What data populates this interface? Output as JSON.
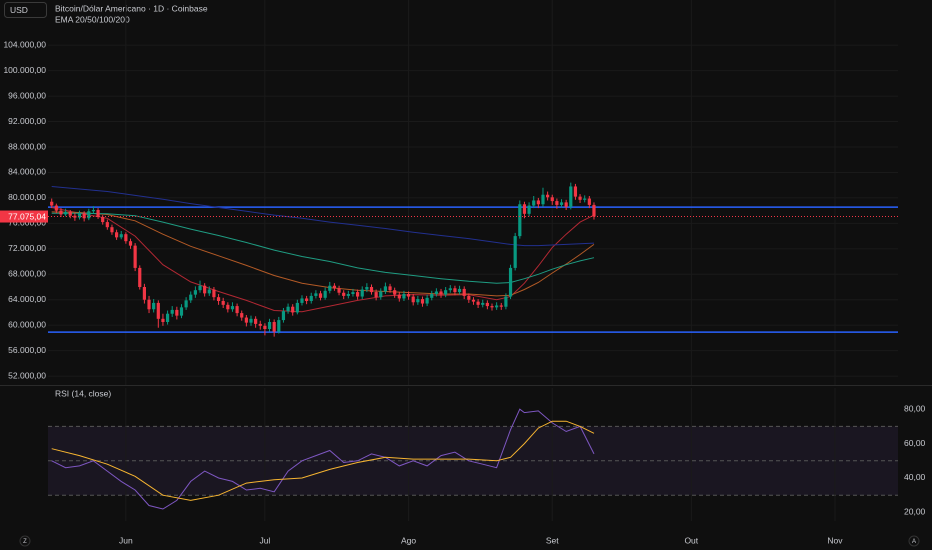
{
  "controls": [
    "Z",
    "A"
  ],
  "chart_data": [
    {
      "type": "candlestick",
      "currency": "USD",
      "title": "Bitcoin/Dólar Americano · 1D · Coinbase",
      "subtitle": "EMA 20/50/100/200",
      "xlim": [
        -0.8,
        182.6
      ],
      "ylim": [
        50600,
        111100
      ],
      "yticks": [
        {
          "value": 104000,
          "label": "104.000,00"
        },
        {
          "value": 100000,
          "label": "100.000,00"
        },
        {
          "value": 96000,
          "label": "96.000,00"
        },
        {
          "value": 92000,
          "label": "92.000,00"
        },
        {
          "value": 88000,
          "label": "88.000,00"
        },
        {
          "value": 84000,
          "label": "84.000,00"
        },
        {
          "value": 80000,
          "label": "80.000,00"
        },
        {
          "value": 76000,
          "label": "76.000,00"
        },
        {
          "value": 72000,
          "label": "72.000,00"
        },
        {
          "value": 68000,
          "label": "68.000,00"
        },
        {
          "value": 64000,
          "label": "64.000,00"
        },
        {
          "value": 60000,
          "label": "60.000,00"
        },
        {
          "value": 56000,
          "label": "56.000,00"
        },
        {
          "value": 52000,
          "label": "52.000,00"
        }
      ],
      "grid": true,
      "up_color": "#089981",
      "down_color": "#f23645",
      "levels": [
        78550,
        58900
      ],
      "level_color": "#2962ff",
      "last_price": {
        "value": 77075.04,
        "label": "77.075,04",
        "color": "#f23645"
      },
      "ohlc": [
        [
          79400,
          79900,
          78400,
          78800
        ],
        [
          78800,
          79100,
          77600,
          78000
        ],
        [
          78000,
          78400,
          77000,
          77400
        ],
        [
          77400,
          78300,
          77100,
          77800
        ],
        [
          77800,
          78100,
          76800,
          77200
        ],
        [
          77200,
          77600,
          76400,
          76900
        ],
        [
          76900,
          78000,
          76600,
          77600
        ],
        [
          77600,
          77900,
          76300,
          76800
        ],
        [
          76800,
          78300,
          76500,
          77900
        ],
        [
          77900,
          78700,
          77500,
          78100
        ],
        [
          78100,
          78400,
          76700,
          77000
        ],
        [
          77000,
          77300,
          75800,
          76200
        ],
        [
          76200,
          76600,
          75000,
          75400
        ],
        [
          75400,
          75800,
          74200,
          74600
        ],
        [
          74600,
          75000,
          73400,
          73800
        ],
        [
          73800,
          74800,
          73500,
          74300
        ],
        [
          74300,
          74600,
          72800,
          73200
        ],
        [
          73200,
          73600,
          72000,
          72500
        ],
        [
          72500,
          72900,
          68500,
          69000
        ],
        [
          69000,
          69400,
          65600,
          66000
        ],
        [
          66000,
          66500,
          63400,
          64000
        ],
        [
          64000,
          64600,
          61900,
          62500
        ],
        [
          62500,
          64100,
          62000,
          63500
        ],
        [
          63500,
          63900,
          59600,
          61000
        ],
        [
          61000,
          61800,
          59900,
          60500
        ],
        [
          60500,
          62300,
          60100,
          61800
        ],
        [
          61800,
          63000,
          61300,
          62400
        ],
        [
          62400,
          62900,
          60900,
          61500
        ],
        [
          61500,
          63300,
          61100,
          62800
        ],
        [
          62800,
          64400,
          62400,
          63900
        ],
        [
          63900,
          65300,
          63500,
          64800
        ],
        [
          64800,
          66100,
          64300,
          65500
        ],
        [
          65500,
          67000,
          65100,
          66200
        ],
        [
          66200,
          66600,
          64500,
          65000
        ],
        [
          65000,
          66100,
          64600,
          65600
        ],
        [
          65600,
          66000,
          63900,
          64400
        ],
        [
          64400,
          64900,
          63200,
          63800
        ],
        [
          63800,
          64300,
          62700,
          63200
        ],
        [
          63200,
          63600,
          62000,
          62500
        ],
        [
          62500,
          63600,
          62100,
          63000
        ],
        [
          63000,
          63400,
          61400,
          61900
        ],
        [
          61900,
          62300,
          60700,
          61200
        ],
        [
          61200,
          61600,
          59800,
          60400
        ],
        [
          60400,
          61500,
          59900,
          61000
        ],
        [
          61000,
          61400,
          59600,
          60200
        ],
        [
          60200,
          60700,
          59300,
          59900
        ],
        [
          59900,
          60300,
          58400,
          59400
        ],
        [
          59400,
          61000,
          59000,
          60500
        ],
        [
          60500,
          60900,
          58200,
          59000
        ],
        [
          59000,
          61300,
          58700,
          60800
        ],
        [
          60800,
          62700,
          60400,
          62200
        ],
        [
          62200,
          63400,
          61800,
          62900
        ],
        [
          62900,
          63300,
          61500,
          62000
        ],
        [
          62000,
          64000,
          61700,
          63500
        ],
        [
          63500,
          64700,
          63100,
          64200
        ],
        [
          64200,
          64600,
          63300,
          63800
        ],
        [
          63800,
          65100,
          63400,
          64600
        ],
        [
          64600,
          65500,
          64200,
          65000
        ],
        [
          65000,
          65400,
          63900,
          64300
        ],
        [
          64300,
          65900,
          64000,
          65400
        ],
        [
          65400,
          66800,
          65000,
          66200
        ],
        [
          66200,
          66600,
          65400,
          65800
        ],
        [
          65800,
          66200,
          64700,
          65100
        ],
        [
          65100,
          65500,
          64100,
          64600
        ],
        [
          64600,
          65400,
          64200,
          64900
        ],
        [
          64900,
          65700,
          64500,
          65200
        ],
        [
          65200,
          65600,
          64000,
          64500
        ],
        [
          64500,
          66100,
          64100,
          65600
        ],
        [
          65600,
          66600,
          65200,
          66000
        ],
        [
          66000,
          66400,
          64800,
          65200
        ],
        [
          65200,
          65600,
          63900,
          64400
        ],
        [
          64400,
          65800,
          64000,
          65300
        ],
        [
          65300,
          66700,
          64900,
          66100
        ],
        [
          66100,
          66500,
          65100,
          65500
        ],
        [
          65500,
          65900,
          64300,
          64800
        ],
        [
          64800,
          65200,
          63700,
          64200
        ],
        [
          64200,
          65400,
          63800,
          64900
        ],
        [
          64900,
          65300,
          64000,
          64500
        ],
        [
          64500,
          64900,
          63100,
          63600
        ],
        [
          63600,
          64600,
          63200,
          64100
        ],
        [
          64100,
          64500,
          62900,
          63400
        ],
        [
          63400,
          64800,
          63000,
          64300
        ],
        [
          64300,
          65400,
          63900,
          64900
        ],
        [
          64900,
          65800,
          64500,
          65300
        ],
        [
          65300,
          65700,
          64300,
          64800
        ],
        [
          64800,
          66000,
          64400,
          65500
        ],
        [
          65500,
          66300,
          65100,
          65800
        ],
        [
          65800,
          66200,
          64700,
          65200
        ],
        [
          65200,
          66200,
          64800,
          65700
        ],
        [
          65700,
          66100,
          64100,
          64600
        ],
        [
          64600,
          65000,
          63500,
          64000
        ],
        [
          64000,
          64400,
          63200,
          63700
        ],
        [
          63700,
          64100,
          62700,
          63200
        ],
        [
          63200,
          64000,
          62800,
          63500
        ],
        [
          63500,
          63900,
          62500,
          63000
        ],
        [
          63000,
          63400,
          62300,
          62800
        ],
        [
          62800,
          63600,
          62400,
          63100
        ],
        [
          63100,
          63500,
          62400,
          62900
        ],
        [
          62900,
          65000,
          62500,
          64500
        ],
        [
          64500,
          69500,
          64100,
          69000
        ],
        [
          69000,
          74500,
          68600,
          74000
        ],
        [
          74000,
          79600,
          73600,
          79000
        ],
        [
          79000,
          79400,
          76800,
          77500
        ],
        [
          77500,
          79300,
          77100,
          78800
        ],
        [
          78800,
          80300,
          78400,
          79600
        ],
        [
          79600,
          80000,
          78400,
          79000
        ],
        [
          79000,
          81600,
          78600,
          80500
        ],
        [
          80500,
          81000,
          79600,
          80100
        ],
        [
          80100,
          80500,
          78900,
          79500
        ],
        [
          79500,
          79900,
          78300,
          78900
        ],
        [
          78900,
          79800,
          78500,
          79300
        ],
        [
          79300,
          79700,
          78100,
          78600
        ],
        [
          78600,
          82400,
          78200,
          81800
        ],
        [
          81800,
          82200,
          79700,
          80200
        ],
        [
          80200,
          80600,
          79200,
          79700
        ],
        [
          79700,
          80400,
          79300,
          79900
        ],
        [
          79900,
          80300,
          78400,
          78900
        ],
        [
          78900,
          79300,
          76600,
          77075.04
        ]
      ],
      "series": [
        {
          "color": "#b22833",
          "x": [
            0,
            6,
            12,
            18,
            24,
            30,
            36,
            42,
            48,
            54,
            60,
            66,
            72,
            78,
            84,
            90,
            96,
            99,
            102,
            105,
            108,
            111,
            114,
            117
          ],
          "values": [
            78500,
            77600,
            76800,
            74000,
            69500,
            66800,
            65300,
            63900,
            62300,
            62100,
            63000,
            63900,
            64600,
            64800,
            64700,
            64800,
            64000,
            64500,
            66600,
            69300,
            72200,
            74300,
            76200,
            77300
          ]
        },
        {
          "color": "#b35a26",
          "x": [
            0,
            6,
            12,
            18,
            24,
            30,
            36,
            42,
            48,
            54,
            60,
            66,
            72,
            78,
            84,
            90,
            96,
            99,
            102,
            105,
            108,
            111,
            114,
            117
          ],
          "values": [
            77800,
            77700,
            77400,
            76400,
            74300,
            72400,
            70900,
            69400,
            67800,
            66600,
            65900,
            65500,
            65300,
            65100,
            64900,
            64900,
            64600,
            64700,
            65600,
            66700,
            68200,
            69600,
            71100,
            72700
          ]
        },
        {
          "color": "#1f9c82",
          "x": [
            0,
            6,
            12,
            18,
            24,
            30,
            36,
            42,
            48,
            54,
            60,
            66,
            72,
            78,
            84,
            90,
            96,
            99,
            102,
            105,
            108,
            111,
            114,
            117
          ],
          "values": [
            77600,
            77600,
            77500,
            77200,
            76200,
            75100,
            74100,
            73000,
            71800,
            70800,
            70000,
            69000,
            68300,
            67800,
            67300,
            66900,
            66600,
            66700,
            67300,
            68000,
            68800,
            69500,
            70100,
            70600
          ]
        },
        {
          "color": "#22308f",
          "x": [
            0,
            6,
            12,
            18,
            24,
            30,
            36,
            42,
            48,
            54,
            60,
            66,
            72,
            78,
            84,
            90,
            96,
            99,
            102,
            105,
            108,
            111,
            114,
            117
          ],
          "values": [
            81800,
            81400,
            81000,
            80400,
            79800,
            79100,
            78500,
            77900,
            77300,
            76800,
            76200,
            75700,
            75200,
            74600,
            74100,
            73600,
            73000,
            72700,
            72500,
            72500,
            72600,
            72700,
            72800,
            72900
          ]
        }
      ]
    },
    {
      "type": "line",
      "title": "RSI (14, close)",
      "xlim": [
        -0.8,
        182.6
      ],
      "ylim": [
        15,
        92.3
      ],
      "yticks": [
        {
          "value": 80,
          "label": "80,00"
        },
        {
          "value": 60,
          "label": "60,00"
        },
        {
          "value": 40,
          "label": "40,00"
        },
        {
          "value": 20,
          "label": "20,00"
        }
      ],
      "xticks": [
        {
          "value": 16,
          "label": "Jun"
        },
        {
          "value": 46,
          "label": "Jul"
        },
        {
          "value": 77,
          "label": "Ago"
        },
        {
          "value": 108,
          "label": "Set"
        },
        {
          "value": 138,
          "label": "Out"
        },
        {
          "value": 169,
          "label": "Nov"
        }
      ],
      "levels": [
        70,
        50,
        30
      ],
      "band_color": "#7e57c2",
      "series": [
        {
          "color": "#7e57c2",
          "x": [
            0,
            3,
            6,
            9,
            12,
            15,
            18,
            21,
            24,
            27,
            30,
            33,
            36,
            39,
            42,
            45,
            48,
            51,
            54,
            57,
            60,
            63,
            66,
            69,
            72,
            75,
            78,
            81,
            84,
            87,
            90,
            93,
            96,
            99,
            101,
            102,
            105,
            108,
            111,
            114,
            117
          ],
          "values": [
            50,
            46,
            47,
            50,
            44,
            38,
            33,
            24,
            22,
            27,
            38,
            44,
            40,
            38,
            33,
            34,
            32,
            44,
            50,
            53,
            56,
            49,
            50,
            54,
            52,
            47,
            50,
            47,
            53,
            55,
            50,
            48,
            46,
            68,
            80,
            78,
            79,
            72,
            67,
            70,
            54
          ]
        },
        {
          "color": "#f7b531",
          "x": [
            0,
            6,
            12,
            18,
            24,
            30,
            36,
            42,
            48,
            54,
            60,
            66,
            72,
            78,
            84,
            90,
            96,
            99,
            102,
            105,
            108,
            111,
            114,
            117
          ],
          "values": [
            57,
            53,
            48,
            41,
            30,
            27,
            30,
            37,
            39,
            40,
            45,
            49,
            52,
            51,
            51,
            51,
            50,
            52,
            60,
            69,
            73,
            73,
            70,
            66
          ]
        }
      ]
    }
  ]
}
